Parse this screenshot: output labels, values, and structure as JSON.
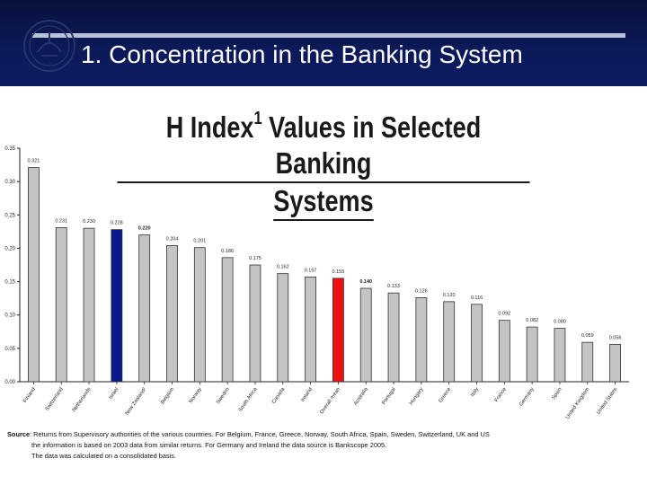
{
  "header": {
    "title": "1. Concentration in the Banking System"
  },
  "chart_title": {
    "line1_prefix": "H Index",
    "superscript": "1",
    "line1_suffix": " Values in Selected Banking",
    "line2": "Systems"
  },
  "source": {
    "label": "Source",
    "line1": ": Returns from Supervisory authorities of the various countries. For Belgium, France, Greece, Norway, South Africa, Spain, Sweden, Switzerland, UK and US",
    "line2": "the information is based on 2003 data from similar returns. For Germany and Ireland the data source is Bankscope 2005.",
    "line3": "The data was calculated on a consolidated basis."
  },
  "chart_data": {
    "type": "bar",
    "categories": [
      "Finland",
      "Switzerland",
      "Netherlands",
      "Israel",
      "New Zealand²",
      "Belgium",
      "Norway",
      "Sweden",
      "South Africa",
      "Canada",
      "Ireland",
      "Overall mean",
      "Australia",
      "Portugal",
      "Hungary",
      "Greece",
      "Italy",
      "France",
      "Germany",
      "Spain",
      "United Kingdom",
      "United States"
    ],
    "values": [
      0.321,
      0.231,
      0.23,
      0.228,
      0.22,
      0.204,
      0.201,
      0.186,
      0.175,
      0.162,
      0.157,
      0.155,
      0.14,
      0.133,
      0.126,
      0.12,
      0.116,
      0.092,
      0.082,
      0.08,
      0.059,
      0.056
    ],
    "value_labels": [
      "0.321",
      "0.231",
      "0.230",
      "0.228",
      "0.220",
      "0.204",
      "0.201",
      "0.186",
      "0.175",
      "0.162",
      "0.157",
      "0.155",
      "0.140",
      "0.133",
      "0.126",
      "0.120",
      "0.116",
      "0.092",
      "0.082",
      "0.080",
      "0.059",
      "0.056"
    ],
    "bold_labels": [
      4,
      12
    ],
    "highlight": {
      "Israel": "#0a1a8c",
      "Overall mean": "#ee1111"
    },
    "default_color": "#c4c4c4",
    "ylim": [
      0,
      0.35
    ],
    "yticks": [
      "0.00",
      "0.05",
      "0.10",
      "0.15",
      "0.20",
      "0.25",
      "0.30",
      "0.35"
    ],
    "xlabel": "",
    "ylabel": "",
    "grid": false
  }
}
